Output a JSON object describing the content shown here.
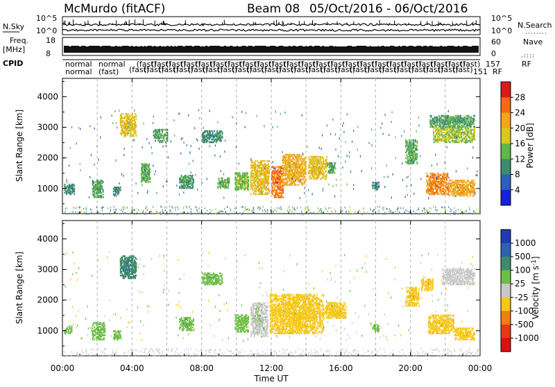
{
  "header": {
    "station": "McMurdo (fitACF)",
    "beam": "Beam 08",
    "date_range": "05/Oct/2016 - 06/Oct/2016"
  },
  "top_panels": {
    "nsky_label": "N.Sky",
    "nsearch_label": "N.Search",
    "nsky_ticks": [
      "10^5",
      "10^0"
    ],
    "nsearch_ticks": [
      "10^5",
      "10^0"
    ],
    "freq_label_1": "Freq.",
    "freq_label_2": "[MHz]",
    "freq_ticks": [
      "18",
      "8"
    ],
    "nave_label": "Nave",
    "nave_ticks": [
      "60",
      "0"
    ],
    "cpid_label": "CPID",
    "cpid_right_value": "151",
    "cpid_right_value2": "157",
    "cpid_rf_label": "RF",
    "cpid_rf_label2": "RF",
    "mode_label": "normal",
    "mode_sub_label": "(fast)"
  },
  "chart_data": [
    {
      "type": "heatmap",
      "name": "power",
      "ylabel": "Slant Range [km]",
      "xlabel": "",
      "xlim_hours": [
        0,
        24
      ],
      "ylim_km": [
        180,
        4600
      ],
      "yticks": [
        1000,
        2000,
        3000,
        4000
      ],
      "colorbar_label": "Power [dB]",
      "colorbar_ticks": [
        "4",
        "8",
        "12",
        "16",
        "20",
        "24",
        "28"
      ],
      "colorbar_colors": [
        "#1522d8",
        "#2d5fb8",
        "#3e8a6e",
        "#61b54a",
        "#d9c81e",
        "#f2a51d",
        "#ef6a1a",
        "#d81a1a"
      ],
      "color_range": [
        0,
        32
      ],
      "regions": [
        {
          "t": [
            0.1,
            0.7
          ],
          "r": [
            800,
            1150
          ],
          "v": 10
        },
        {
          "t": [
            1.7,
            2.3
          ],
          "r": [
            700,
            1250
          ],
          "v": 12
        },
        {
          "t": [
            2.9,
            3.3
          ],
          "r": [
            750,
            1050
          ],
          "v": 9
        },
        {
          "t": [
            3.3,
            4.2
          ],
          "r": [
            2700,
            3450
          ],
          "v": 19
        },
        {
          "t": [
            4.5,
            5.0
          ],
          "r": [
            1200,
            1800
          ],
          "v": 13
        },
        {
          "t": [
            5.2,
            6.0
          ],
          "r": [
            2500,
            2950
          ],
          "v": 12
        },
        {
          "t": [
            6.7,
            7.5
          ],
          "r": [
            1000,
            1450
          ],
          "v": 11
        },
        {
          "t": [
            8.0,
            9.2
          ],
          "r": [
            2500,
            2900
          ],
          "v": 10
        },
        {
          "t": [
            8.9,
            9.6
          ],
          "r": [
            1000,
            1350
          ],
          "v": 13
        },
        {
          "t": [
            9.9,
            10.7
          ],
          "r": [
            950,
            1500
          ],
          "v": 15
        },
        {
          "t": [
            10.8,
            11.9
          ],
          "r": [
            800,
            1900
          ],
          "v": 20
        },
        {
          "t": [
            12.0,
            12.7
          ],
          "r": [
            700,
            1700
          ],
          "v": 25
        },
        {
          "t": [
            12.6,
            14.0
          ],
          "r": [
            1100,
            2100
          ],
          "v": 21
        },
        {
          "t": [
            14.1,
            15.2
          ],
          "r": [
            1300,
            2050
          ],
          "v": 19
        },
        {
          "t": [
            15.2,
            15.7
          ],
          "r": [
            1500,
            1850
          ],
          "v": 12
        },
        {
          "t": [
            17.8,
            18.2
          ],
          "r": [
            950,
            1200
          ],
          "v": 9
        },
        {
          "t": [
            19.7,
            20.4
          ],
          "r": [
            1800,
            2600
          ],
          "v": 13
        },
        {
          "t": [
            20.9,
            22.2
          ],
          "r": [
            800,
            1500
          ],
          "v": 24
        },
        {
          "t": [
            22.2,
            23.7
          ],
          "r": [
            750,
            1250
          ],
          "v": 22
        },
        {
          "t": [
            21.3,
            23.7
          ],
          "r": [
            2500,
            3000
          ],
          "v": 16
        },
        {
          "t": [
            21.1,
            23.7
          ],
          "r": [
            3000,
            3400
          ],
          "v": 12
        }
      ]
    },
    {
      "type": "heatmap",
      "name": "velocity",
      "ylabel": "Slant Range [km]",
      "xlabel": "Time UT",
      "xlim_hours": [
        0,
        24
      ],
      "ylim_km": [
        180,
        4600
      ],
      "yticks": [
        1000,
        2000,
        3000,
        4000
      ],
      "xtick_labels": [
        "00:00",
        "04:00",
        "08:00",
        "12:00",
        "16:00",
        "20:00",
        "00:00"
      ],
      "colorbar_label": "Velocity [m s^-1]",
      "colorbar_ticks": [
        "1000",
        "500",
        "100",
        "25",
        "-25",
        "-100",
        "-500",
        "-1000"
      ],
      "colorbar_colors": [
        "#1f3ab0",
        "#2f63b0",
        "#3f8a6a",
        "#6cbe45",
        "#c8c8c8",
        "#f5c718",
        "#ef7f16",
        "#e33a1a",
        "#d81212"
      ],
      "color_range": [
        -1200,
        1200
      ],
      "regions": [
        {
          "t": [
            0.1,
            0.5
          ],
          "r": [
            900,
            1150
          ],
          "v": 200
        },
        {
          "t": [
            1.7,
            2.4
          ],
          "r": [
            700,
            1250
          ],
          "v": 300
        },
        {
          "t": [
            2.9,
            3.3
          ],
          "r": [
            700,
            1000
          ],
          "v": 250
        },
        {
          "t": [
            3.3,
            4.2
          ],
          "r": [
            2700,
            3450
          ],
          "v": 600
        },
        {
          "t": [
            6.7,
            7.5
          ],
          "r": [
            1000,
            1450
          ],
          "v": 350
        },
        {
          "t": [
            8.0,
            9.2
          ],
          "r": [
            2500,
            2900
          ],
          "v": 300
        },
        {
          "t": [
            9.9,
            10.7
          ],
          "r": [
            950,
            1500
          ],
          "v": 250
        },
        {
          "t": [
            10.8,
            11.8
          ],
          "r": [
            800,
            1900
          ],
          "v": 80
        },
        {
          "t": [
            11.9,
            15.0
          ],
          "r": [
            900,
            2200
          ],
          "v": -250
        },
        {
          "t": [
            15.0,
            16.3
          ],
          "r": [
            1400,
            1900
          ],
          "v": -250
        },
        {
          "t": [
            17.8,
            18.2
          ],
          "r": [
            950,
            1200
          ],
          "v": 300
        },
        {
          "t": [
            19.7,
            20.5
          ],
          "r": [
            1800,
            2400
          ],
          "v": -300
        },
        {
          "t": [
            20.6,
            21.3
          ],
          "r": [
            2300,
            2700
          ],
          "v": -300
        },
        {
          "t": [
            21.0,
            22.5
          ],
          "r": [
            900,
            1500
          ],
          "v": -300
        },
        {
          "t": [
            22.5,
            23.7
          ],
          "r": [
            700,
            1100
          ],
          "v": -300
        },
        {
          "t": [
            21.8,
            23.7
          ],
          "r": [
            2500,
            3000
          ],
          "v": 0
        }
      ]
    }
  ]
}
